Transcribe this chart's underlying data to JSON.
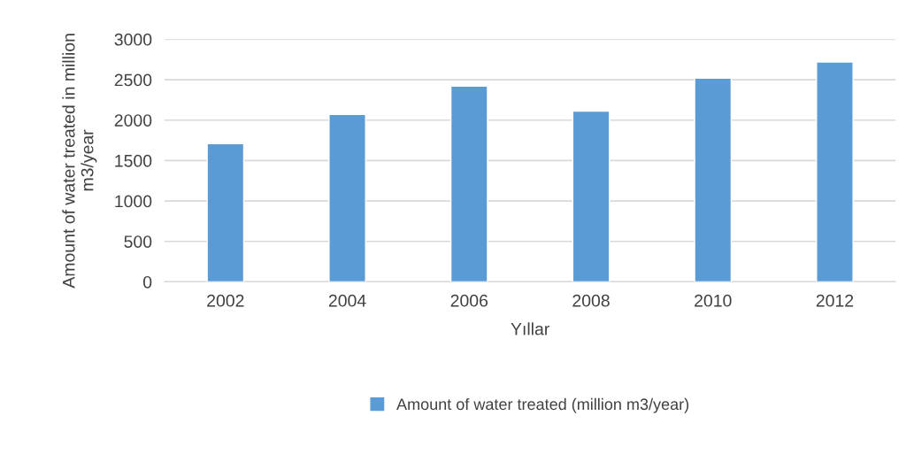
{
  "chart_data": {
    "type": "bar",
    "xlabel": "Yıllar",
    "ylabel": "Amount of water treated in million m3/year",
    "categories": [
      "2002",
      "2004",
      "2006",
      "2008",
      "2010",
      "2012"
    ],
    "series": [
      {
        "name": "Amount of water treated (million m3/year)",
        "color": "#5b9bd5",
        "values": [
          1710,
          2070,
          2420,
          2110,
          2520,
          2720
        ]
      }
    ],
    "ylim": [
      0,
      3000
    ],
    "yticks": [
      0,
      500,
      1000,
      1500,
      2000,
      2500,
      3000
    ],
    "grid": "y",
    "legend": "bottom"
  }
}
